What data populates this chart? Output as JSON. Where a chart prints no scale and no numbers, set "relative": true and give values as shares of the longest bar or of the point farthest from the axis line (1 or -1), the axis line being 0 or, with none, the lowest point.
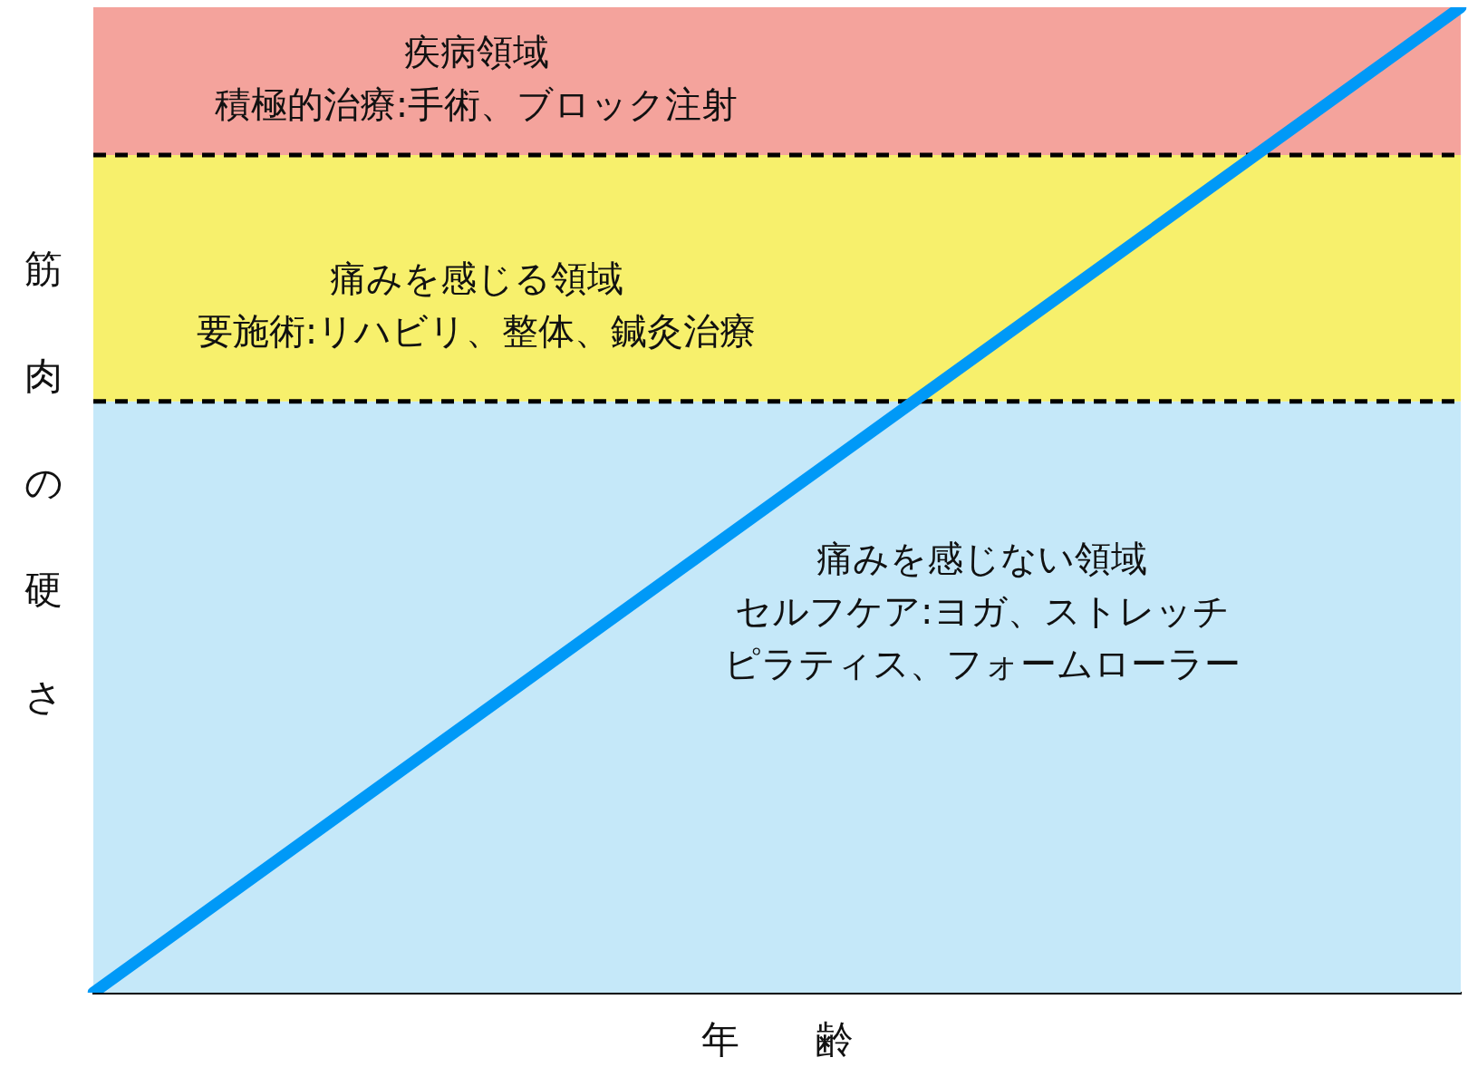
{
  "chart_data": {
    "type": "line",
    "relative": true,
    "xlabel": "年　　齢",
    "ylabel": "筋肉の硬さ",
    "categories": [
      null,
      null
    ],
    "series": [
      {
        "color": "#0099f7",
        "values": [
          0,
          1
        ]
      }
    ],
    "bands": [
      {
        "axis": "y",
        "from": 0,
        "to": 0.6,
        "color": "#c5e8f9",
        "label": "痛みを感じない領域セルフケア:ヨガ、ストレッチピラティス、フォームローラー"
      },
      {
        "axis": "y",
        "from": 0.6,
        "to": 0.85,
        "color": "#f7f06c",
        "label": "痛みを感じる領域要施術:リハビリ、整体、鍼灸治療"
      },
      {
        "axis": "y",
        "from": 0.85,
        "to": 1,
        "color": "#f4a39c",
        "label": "疾病領域積極的治療:手術、ブロック注射"
      }
    ],
    "ref_lines": [
      {
        "axis": "y",
        "value": 0.6,
        "color": "#000000",
        "line_style": "dashed"
      },
      {
        "axis": "y",
        "value": 0.85,
        "color": "#000000",
        "line_style": "dashed"
      }
    ],
    "grid": false,
    "legend": false,
    "marker": "none",
    "line_style": "solid"
  }
}
